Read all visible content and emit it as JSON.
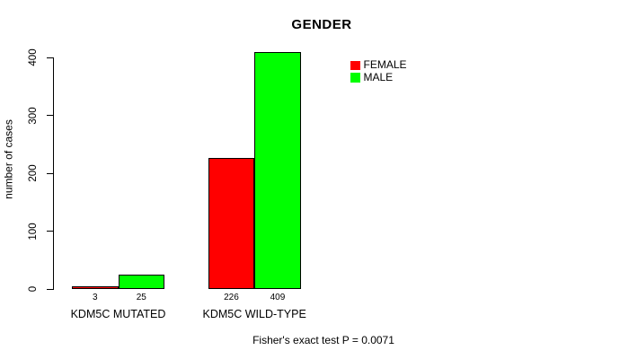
{
  "chart_data": {
    "type": "bar",
    "title": "GENDER",
    "ylabel": "number of cases",
    "xlabel": "",
    "categories": [
      "KDM5C MUTATED",
      "KDM5C WILD-TYPE"
    ],
    "series": [
      {
        "name": "FEMALE",
        "color": "#ff0000",
        "values": [
          3,
          226
        ]
      },
      {
        "name": "MALE",
        "color": "#00ff00",
        "values": [
          25,
          409
        ]
      }
    ],
    "bar_value_labels": [
      [
        "3",
        "226"
      ],
      [
        "25",
        "409"
      ]
    ],
    "yticks": [
      0,
      100,
      200,
      300,
      400
    ],
    "ylim": [
      0,
      418
    ],
    "grid": false,
    "legend_position": "right",
    "annotation": "Fisher's exact test P = 0.0071",
    "colors": {
      "axis": "#000000",
      "bar_border": "#000000",
      "background": "#ffffff"
    }
  }
}
